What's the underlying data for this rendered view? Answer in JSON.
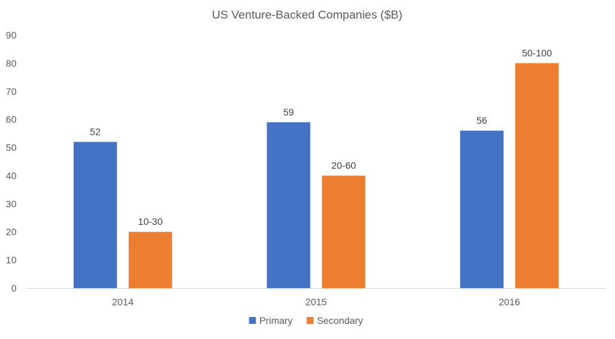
{
  "chart_data": {
    "type": "bar",
    "title": "US Venture-Backed  Companies ($B)",
    "categories": [
      "2014",
      "2015",
      "2016"
    ],
    "series": [
      {
        "name": "Primary",
        "color": "#4472c4",
        "values": [
          52,
          59,
          56
        ],
        "labels": [
          "52",
          "59",
          "56"
        ]
      },
      {
        "name": "Secondary",
        "color": "#ed7d31",
        "values": [
          20,
          40,
          80
        ],
        "labels": [
          "10-30",
          "20-60",
          "50-100"
        ]
      }
    ],
    "ylim": [
      0,
      90
    ],
    "yticks": [
      "0",
      "10",
      "20",
      "30",
      "40",
      "50",
      "60",
      "70",
      "80",
      "90"
    ],
    "grid": false,
    "legend_position": "bottom"
  }
}
